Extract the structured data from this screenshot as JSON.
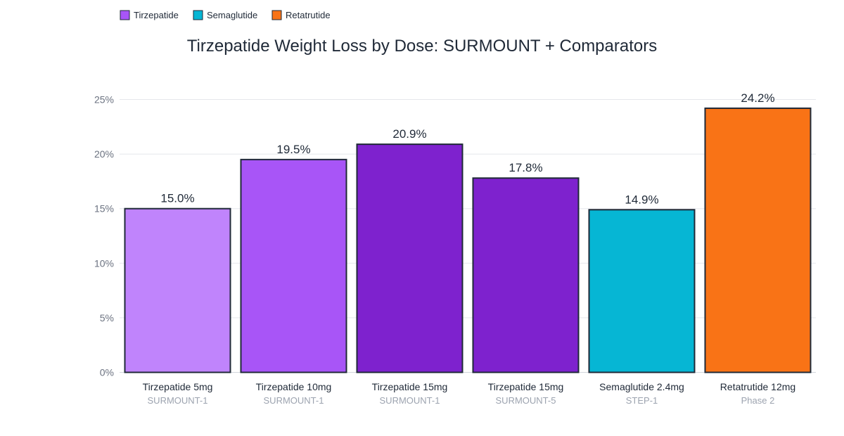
{
  "chart_data": {
    "type": "bar",
    "title": "Tirzepatide Weight Loss by Dose: SURMOUNT + Comparators",
    "ylim": [
      0,
      25
    ],
    "yticks": [
      0,
      5,
      10,
      15,
      20,
      25
    ],
    "ytick_labels": [
      "0%",
      "5%",
      "10%",
      "15%",
      "20%",
      "25%"
    ],
    "grid": true,
    "legend_position": "top-left",
    "legend": [
      {
        "name": "Tirzepatide",
        "color": "#a855f7"
      },
      {
        "name": "Semaglutide",
        "color": "#06b6d4"
      },
      {
        "name": "Retatrutide",
        "color": "#f97316"
      }
    ],
    "bars": [
      {
        "category": "Tirzepatide 5mg",
        "subcategory": "SURMOUNT-1",
        "value": 15.0,
        "label": "15.0%",
        "color": "#c084fc"
      },
      {
        "category": "Tirzepatide 10mg",
        "subcategory": "SURMOUNT-1",
        "value": 19.5,
        "label": "19.5%",
        "color": "#a855f7"
      },
      {
        "category": "Tirzepatide 15mg",
        "subcategory": "SURMOUNT-1",
        "value": 20.9,
        "label": "20.9%",
        "color": "#7e22ce"
      },
      {
        "category": "Tirzepatide 15mg",
        "subcategory": "SURMOUNT-5",
        "value": 17.8,
        "label": "17.8%",
        "color": "#7e22ce"
      },
      {
        "category": "Semaglutide 2.4mg",
        "subcategory": "STEP-1",
        "value": 14.9,
        "label": "14.9%",
        "color": "#06b6d4"
      },
      {
        "category": "Retatrutide 12mg",
        "subcategory": "Phase 2",
        "value": 24.2,
        "label": "24.2%",
        "color": "#f97316"
      }
    ]
  }
}
